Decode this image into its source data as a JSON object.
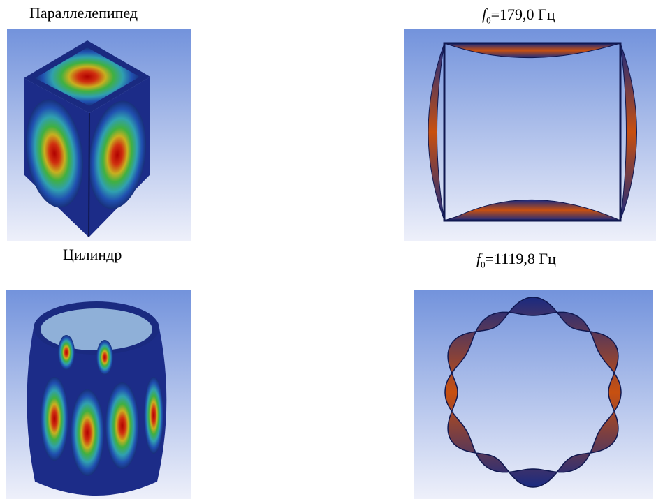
{
  "rows": [
    {
      "shape_label": "Параллелепипед",
      "frequency": {
        "symbol": "f",
        "subscript": "0",
        "text": "=179,0  Гц"
      }
    },
    {
      "shape_label": "Цилиндр",
      "frequency": {
        "symbol": "f",
        "subscript": "0",
        "text": "=1119,8  Гц"
      }
    }
  ]
}
